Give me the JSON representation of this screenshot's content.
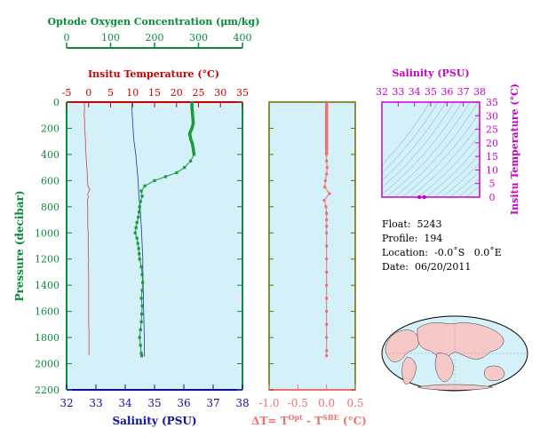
{
  "chart_data": [
    {
      "type": "line",
      "name": "profile",
      "ylabel": "Pressure (decibar)",
      "ylim": [
        0,
        2200
      ],
      "y_ticks": [
        0,
        200,
        400,
        600,
        800,
        1000,
        1200,
        1400,
        1600,
        1800,
        2000,
        2200
      ],
      "axes": {
        "oxygen": {
          "label": "Optode Oxygen Concentration (μm/kg)",
          "lim": [
            0,
            400
          ],
          "ticks": [
            0,
            100,
            200,
            300,
            400
          ],
          "color": "#0a8a3a"
        },
        "temperature": {
          "label": "Insitu Temperature (°C)",
          "lim": [
            -5,
            35
          ],
          "ticks": [
            -5,
            0,
            5,
            10,
            15,
            20,
            25,
            30,
            35
          ],
          "color": "#cc0000"
        },
        "salinity": {
          "label": "Salinity (PSU)",
          "lim": [
            32,
            38
          ],
          "ticks": [
            32,
            33,
            34,
            35,
            36,
            37,
            38
          ],
          "color": "#1010a0"
        }
      },
      "series": [
        {
          "name": "Temperature",
          "axis": "temperature",
          "color": "#d04040",
          "points": [
            [
              -1.0,
              5
            ],
            [
              -0.9,
              50
            ],
            [
              -1.0,
              100
            ],
            [
              -0.9,
              150
            ],
            [
              -0.9,
              200
            ],
            [
              -0.8,
              250
            ],
            [
              -0.7,
              300
            ],
            [
              -0.7,
              350
            ],
            [
              -0.6,
              400
            ],
            [
              -0.5,
              450
            ],
            [
              -0.4,
              500
            ],
            [
              -0.3,
              550
            ],
            [
              -0.3,
              600
            ],
            [
              -0.1,
              650
            ],
            [
              0.3,
              670
            ],
            [
              -0.2,
              700
            ],
            [
              -0.1,
              730
            ],
            [
              -0.3,
              750
            ],
            [
              -0.2,
              800
            ],
            [
              -0.2,
              850
            ],
            [
              -0.2,
              900
            ],
            [
              -0.2,
              950
            ],
            [
              -0.1,
              1000
            ],
            [
              -0.1,
              1050
            ],
            [
              -0.1,
              1100
            ],
            [
              -0.1,
              1150
            ],
            [
              0.0,
              1200
            ],
            [
              -0.1,
              1250
            ],
            [
              0.0,
              1300
            ],
            [
              0.0,
              1350
            ],
            [
              0.0,
              1400
            ],
            [
              0.0,
              1450
            ],
            [
              0.0,
              1500
            ],
            [
              0.0,
              1550
            ],
            [
              0.0,
              1600
            ],
            [
              0.0,
              1650
            ],
            [
              0.0,
              1700
            ],
            [
              0.1,
              1750
            ],
            [
              0.1,
              1800
            ],
            [
              0.1,
              1850
            ],
            [
              0.1,
              1900
            ],
            [
              0.1,
              1935
            ]
          ]
        },
        {
          "name": "Salinity",
          "axis": "salinity",
          "color": "#2030b0",
          "points": [
            [
              34.23,
              5
            ],
            [
              34.23,
              50
            ],
            [
              34.24,
              100
            ],
            [
              34.25,
              150
            ],
            [
              34.27,
              200
            ],
            [
              34.28,
              250
            ],
            [
              34.3,
              300
            ],
            [
              34.33,
              350
            ],
            [
              34.36,
              400
            ],
            [
              34.38,
              450
            ],
            [
              34.4,
              500
            ],
            [
              34.42,
              550
            ],
            [
              34.44,
              600
            ],
            [
              34.45,
              650
            ],
            [
              34.46,
              700
            ],
            [
              34.48,
              750
            ],
            [
              34.5,
              800
            ],
            [
              34.52,
              850
            ],
            [
              34.53,
              900
            ],
            [
              34.55,
              950
            ],
            [
              34.56,
              1000
            ],
            [
              34.57,
              1050
            ],
            [
              34.58,
              1100
            ],
            [
              34.59,
              1150
            ],
            [
              34.6,
              1200
            ],
            [
              34.6,
              1300
            ],
            [
              34.61,
              1400
            ],
            [
              34.62,
              1500
            ],
            [
              34.63,
              1600
            ],
            [
              34.64,
              1700
            ],
            [
              34.65,
              1800
            ],
            [
              34.65,
              1900
            ],
            [
              34.66,
              1945
            ]
          ]
        },
        {
          "name": "Oxygen",
          "axis": "oxygen",
          "color": "#1a9a3a",
          "points": [
            [
              285,
              5
            ],
            [
              285,
              40
            ],
            [
              286,
              80
            ],
            [
              287,
              120
            ],
            [
              288,
              160
            ],
            [
              285,
              200
            ],
            [
              280,
              240
            ],
            [
              282,
              280
            ],
            [
              286,
              320
            ],
            [
              288,
              360
            ],
            [
              290,
              400
            ],
            [
              282,
              450
            ],
            [
              268,
              500
            ],
            [
              250,
              540
            ],
            [
              225,
              570
            ],
            [
              200,
              600
            ],
            [
              178,
              640
            ],
            [
              170,
              680
            ],
            [
              172,
              720
            ],
            [
              168,
              760
            ],
            [
              166,
              800
            ],
            [
              165,
              840
            ],
            [
              163,
              880
            ],
            [
              160,
              920
            ],
            [
              158,
              960
            ],
            [
              156,
              1000
            ],
            [
              160,
              1040
            ],
            [
              162,
              1080
            ],
            [
              164,
              1120
            ],
            [
              165,
              1160
            ],
            [
              166,
              1200
            ],
            [
              170,
              1260
            ],
            [
              172,
              1320
            ],
            [
              173,
              1380
            ],
            [
              172,
              1440
            ],
            [
              170,
              1500
            ],
            [
              172,
              1560
            ],
            [
              171,
              1620
            ],
            [
              170,
              1680
            ],
            [
              168,
              1740
            ],
            [
              166,
              1800
            ],
            [
              168,
              1860
            ],
            [
              170,
              1920
            ],
            [
              171,
              1940
            ]
          ]
        }
      ]
    },
    {
      "type": "line",
      "name": "delta_t",
      "xlabel": "ΔT= T^Opt - T^SBE (°C)",
      "xlim": [
        -1.0,
        0.5
      ],
      "x_ticks": [
        -1.0,
        -0.5,
        0.0,
        0.5
      ],
      "ylim": [
        0,
        2200
      ],
      "color": "#f07070",
      "points": [
        [
          0.0,
          10
        ],
        [
          0.0,
          40
        ],
        [
          0.0,
          80
        ],
        [
          0.0,
          120
        ],
        [
          0.0,
          160
        ],
        [
          0.0,
          200
        ],
        [
          0.0,
          240
        ],
        [
          0.0,
          280
        ],
        [
          0.0,
          320
        ],
        [
          0.0,
          360
        ],
        [
          0.0,
          400
        ],
        [
          0.0,
          450
        ],
        [
          0.01,
          500
        ],
        [
          0.0,
          550
        ],
        [
          -0.02,
          600
        ],
        [
          -0.03,
          650
        ],
        [
          0.05,
          700
        ],
        [
          -0.04,
          750
        ],
        [
          -0.01,
          800
        ],
        [
          0.0,
          850
        ],
        [
          0.0,
          900
        ],
        [
          0.0,
          950
        ],
        [
          0.0,
          1000
        ],
        [
          0.0,
          1100
        ],
        [
          0.0,
          1200
        ],
        [
          0.0,
          1300
        ],
        [
          0.0,
          1400
        ],
        [
          0.0,
          1500
        ],
        [
          0.0,
          1600
        ],
        [
          0.0,
          1700
        ],
        [
          0.0,
          1800
        ],
        [
          0.0,
          1900
        ],
        [
          0.0,
          1940
        ]
      ]
    },
    {
      "type": "scatter",
      "name": "ts_diagram",
      "xlabel": "Salinity (PSU)",
      "ylabel": "Insitu Temperature (°C)",
      "xlim": [
        32,
        38
      ],
      "ylim": [
        0,
        35
      ],
      "x_ticks": [
        32,
        33,
        34,
        35,
        36,
        37,
        38
      ],
      "y_ticks": [
        0,
        5,
        10,
        15,
        20,
        25,
        30,
        35
      ],
      "color": "#cc00cc",
      "points": [
        [
          34.3,
          0.0
        ],
        [
          34.6,
          0.0
        ]
      ]
    }
  ],
  "labels": {
    "oxygen_title": "Optode Oxygen Concentration (μm/kg)",
    "temp_title": "Insitu Temperature (°C)",
    "pressure_label": "Pressure (decibar)",
    "salinity_bottom": "Salinity (PSU)",
    "delta_label": "ΔT= T",
    "delta_sup1": "Opt",
    "delta_mid": " - T",
    "delta_sup2": "SBE",
    "delta_unit": " (°C)",
    "ts_salinity": "Salinity (PSU)",
    "ts_temp": "Insitu Temperature (°C)"
  },
  "info": {
    "float": "Float:  5243",
    "profile": "Profile:  194",
    "location": "Location:  -0.0˚S   0.0˚E",
    "date": "Date:  06/20/2011"
  },
  "colors": {
    "panel_bg": "#d4f0f8",
    "green": "#0a8a3a",
    "red": "#cc0000",
    "blue": "#1010a0",
    "magenta": "#cc00cc",
    "salmon": "#f07070",
    "olive": "#6b6b00",
    "land": "#f7c8c8",
    "ocean": "#d4f0f8"
  }
}
